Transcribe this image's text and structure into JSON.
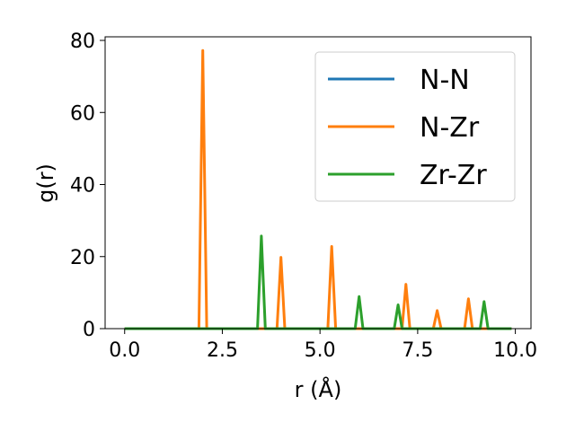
{
  "chart_data": {
    "type": "line",
    "title": "",
    "xlabel": "r (Å)",
    "ylabel": "g(r)",
    "xlim": [
      -0.5,
      10.4
    ],
    "ylim": [
      0,
      81
    ],
    "xticks": [
      0.0,
      2.5,
      5.0,
      7.5,
      10.0
    ],
    "xtick_labels": [
      "0.0",
      "2.5",
      "5.0",
      "7.5",
      "10.0"
    ],
    "yticks": [
      0,
      20,
      40,
      60,
      80
    ],
    "ytick_labels": [
      "0",
      "20",
      "40",
      "60",
      "80"
    ],
    "grid": false,
    "legend_position": "top-right",
    "series": [
      {
        "name": "N-N",
        "color": "#1f77b4",
        "x": [
          0.0,
          9.9
        ],
        "y": [
          0,
          0
        ]
      },
      {
        "name": "N-Zr",
        "color": "#ff7f0e",
        "x": [
          0.0,
          1.9,
          2.0,
          2.1,
          3.9,
          4.0,
          4.1,
          5.2,
          5.3,
          5.4,
          7.1,
          7.2,
          7.3,
          7.9,
          8.0,
          8.1,
          8.7,
          8.8,
          8.9,
          9.9
        ],
        "y": [
          0,
          0,
          77.2,
          0,
          0,
          19.8,
          0,
          0,
          22.8,
          0,
          0,
          12.3,
          0,
          0,
          5.0,
          0,
          0,
          8.3,
          0,
          0
        ]
      },
      {
        "name": "Zr-Zr",
        "color": "#2ca02c",
        "x": [
          0.0,
          3.4,
          3.5,
          3.6,
          5.9,
          6.0,
          6.1,
          6.9,
          7.0,
          7.1,
          9.1,
          9.2,
          9.3,
          9.9
        ],
        "y": [
          0,
          0,
          25.7,
          0,
          0,
          8.9,
          0,
          0,
          6.6,
          0,
          0,
          7.5,
          0,
          0
        ]
      }
    ]
  }
}
